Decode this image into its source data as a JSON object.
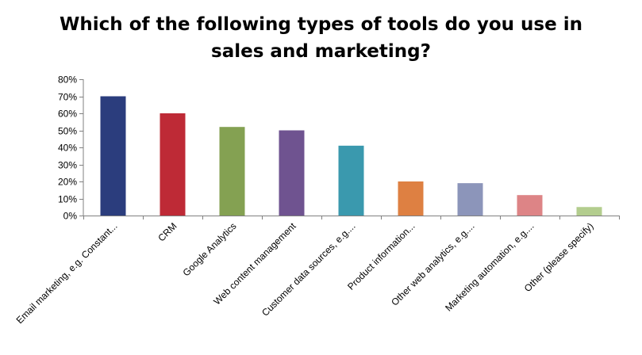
{
  "chart_data": {
    "type": "bar",
    "title_lines": [
      "Which of the following types of tools do you use in",
      "sales and marketing?"
    ],
    "xlabel": "",
    "ylabel": "",
    "ylim": [
      0,
      80
    ],
    "y_ticks": [
      0,
      10,
      20,
      30,
      40,
      50,
      60,
      70,
      80
    ],
    "y_tick_labels": [
      "0%",
      "10%",
      "20%",
      "30%",
      "40%",
      "50%",
      "60%",
      "70%",
      "80%"
    ],
    "grid": false,
    "legend": "none",
    "categories": [
      "Email marketing, e.g. Constant...",
      "CRM",
      "Google Analytics",
      "Web content management",
      "Customer data sources, e.g....",
      "Product information...",
      "Other web analytics, e.g....",
      "Marketing automation,  e.g....",
      "Other (please specify)"
    ],
    "values": [
      70,
      60,
      52,
      50,
      41,
      20,
      19,
      12,
      5
    ],
    "colors": [
      "#2B3D7D",
      "#BE2A36",
      "#84A152",
      "#6F5390",
      "#3A99AE",
      "#DE8042",
      "#8C95BA",
      "#DD8486",
      "#B3CD8E"
    ]
  }
}
